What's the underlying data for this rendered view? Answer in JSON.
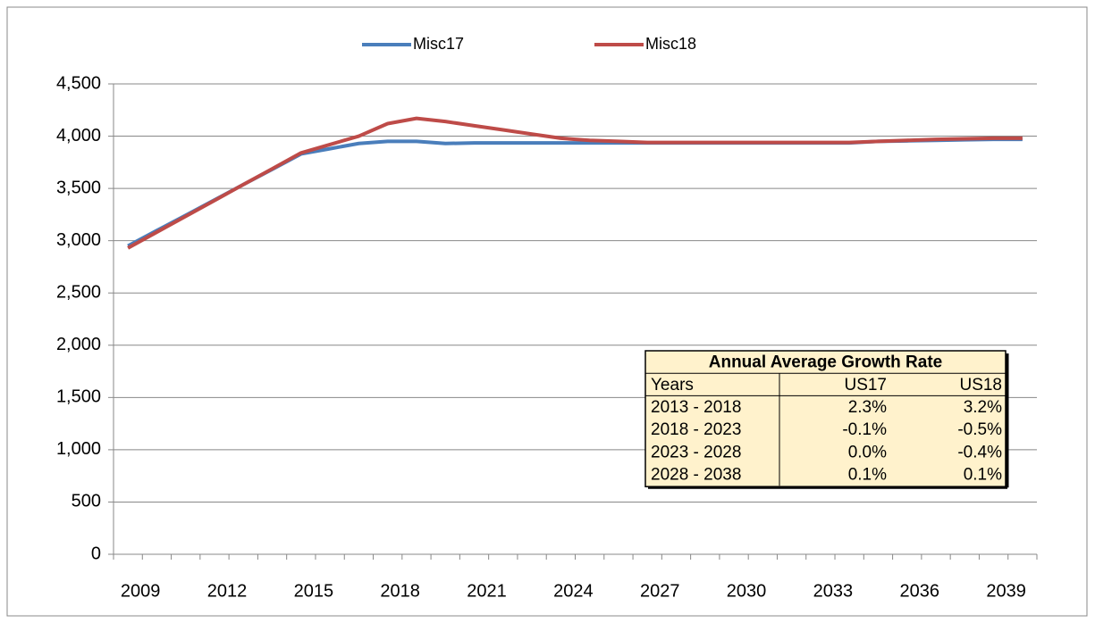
{
  "chart_data": {
    "type": "line",
    "categories": [
      "2009",
      null,
      null,
      "2012",
      null,
      null,
      "2015",
      null,
      null,
      "2018",
      null,
      null,
      "2021",
      null,
      null,
      "2024",
      null,
      null,
      "2027",
      null,
      null,
      "2030",
      null,
      null,
      "2033",
      null,
      null,
      "2036",
      null,
      null,
      "2039",
      null
    ],
    "series": [
      {
        "name": "Misc17",
        "color": "#4a7ebb",
        "values": [
          2950,
          3097,
          3243,
          3390,
          3537,
          3683,
          3830,
          3880,
          3930,
          3950,
          3950,
          3930,
          3935,
          3935,
          3935,
          3935,
          3935,
          3935,
          3935,
          3935,
          3935,
          3935,
          3935,
          3935,
          3935,
          3935,
          3950,
          3955,
          3960,
          3965,
          3970,
          3970
        ]
      },
      {
        "name": "Misc18",
        "color": "#be4b48",
        "values": [
          2930,
          3082,
          3233,
          3385,
          3537,
          3688,
          3840,
          3920,
          4000,
          4120,
          4170,
          4140,
          4100,
          4060,
          4020,
          3980,
          3960,
          3950,
          3940,
          3940,
          3940,
          3940,
          3940,
          3940,
          3940,
          3940,
          3950,
          3960,
          3970,
          3975,
          3980,
          3980
        ]
      }
    ],
    "ylim": [
      0,
      4500
    ],
    "yticks": [
      0,
      500,
      {
        "value": 1000,
        "label": "1,000"
      },
      {
        "value": 1500,
        "label": "1,500"
      },
      {
        "value": 2000,
        "label": "2,000"
      },
      {
        "value": 2500,
        "label": "2,500"
      },
      {
        "value": 3000,
        "label": "3,000"
      },
      {
        "value": 3500,
        "label": "3,500"
      },
      {
        "value": 4000,
        "label": "4,000"
      },
      {
        "value": 4500,
        "label": "4,500"
      }
    ],
    "grid": true,
    "legend": "top",
    "table": {
      "title": "Annual Average Growth Rate",
      "header": [
        "Years",
        "US17",
        "US18"
      ],
      "rows": [
        [
          "2013 - 2018",
          "2.3%",
          "3.2%"
        ],
        [
          "2018 - 2023",
          "-0.1%",
          "-0.5%"
        ],
        [
          "2023 - 2028",
          "0.0%",
          "-0.4%"
        ],
        [
          "2028 - 2038",
          "0.1%",
          "0.1%"
        ]
      ]
    }
  }
}
